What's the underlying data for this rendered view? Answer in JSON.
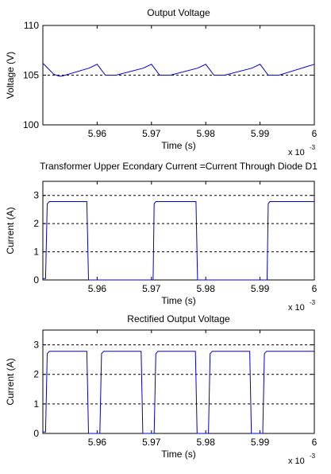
{
  "chart_data": [
    {
      "type": "line",
      "title": "Output Voltage",
      "xlabel": "Time (s)",
      "ylabel": "Voltage (V)",
      "xlim": [
        0.00595,
        0.006
      ],
      "ylim": [
        100,
        110
      ],
      "xticks": [
        0.00596,
        0.00597,
        0.00598,
        0.00599,
        0.006
      ],
      "xtick_labels": [
        "5.96",
        "5.97",
        "5.98",
        "5.99",
        "6"
      ],
      "yticks": [
        100,
        105,
        110
      ],
      "ytick_labels": [
        "100",
        "105",
        "110"
      ],
      "x_exponent": {
        "base": "x 10",
        "power": "-3"
      },
      "grid": "dotted-horizontal",
      "reference_line": 105,
      "series": [
        {
          "color": "#0000cc",
          "x": [
            0.00595,
            0.005952,
            0.005953,
            0.0059535,
            0.0059585,
            0.00596,
            0.0059615,
            0.0059635,
            0.0059685,
            0.00597,
            0.0059715,
            0.0059735,
            0.0059785,
            0.00598,
            0.0059815,
            0.0059835,
            0.0059885,
            0.00599,
            0.0059915,
            0.0059935,
            0.006
          ],
          "y": [
            106.2,
            105.1,
            104.9,
            104.9,
            105.7,
            106.1,
            105.0,
            105.0,
            105.7,
            106.1,
            105.0,
            105.0,
            105.7,
            106.1,
            105.0,
            105.0,
            105.7,
            106.1,
            105.0,
            105.0,
            106.1
          ]
        }
      ]
    },
    {
      "type": "line",
      "title": "Transformer Upper Econdary Current =Current Through Diode D1",
      "xlabel": "Time (s)",
      "ylabel": "Current (A)",
      "xlim": [
        0.00595,
        0.006
      ],
      "ylim": [
        0,
        3.5
      ],
      "xticks": [
        0.00596,
        0.00597,
        0.00598,
        0.00599,
        0.006
      ],
      "xtick_labels": [
        "5.96",
        "5.97",
        "5.98",
        "5.99",
        "6"
      ],
      "yticks": [
        0,
        1,
        2,
        3
      ],
      "ytick_labels": [
        "0",
        "1",
        "2",
        "3"
      ],
      "x_exponent": {
        "base": "x 10",
        "power": "-3"
      },
      "grid": "dotted-horizontal",
      "series": [
        {
          "color": "#0000cc",
          "x": [
            0.00595,
            0.0059505,
            0.0059508,
            0.0059512,
            0.0059581,
            0.0059584,
            0.0059703,
            0.0059705,
            0.0059708,
            0.0059782,
            0.0059785,
            0.0059913,
            0.0059915,
            0.0059918,
            0.006
          ],
          "y": [
            0.05,
            0.05,
            2.7,
            2.78,
            2.78,
            0,
            0,
            2.7,
            2.78,
            2.78,
            0,
            0,
            2.7,
            2.78,
            2.78
          ]
        }
      ]
    },
    {
      "type": "line",
      "title": "Rectified Output Voltage",
      "xlabel": "Time (s)",
      "ylabel": "Current (A)",
      "xlim": [
        0.00595,
        0.006
      ],
      "ylim": [
        0,
        3.5
      ],
      "xticks": [
        0.00596,
        0.00597,
        0.00598,
        0.00599,
        0.006
      ],
      "xtick_labels": [
        "5.96",
        "5.97",
        "5.98",
        "5.99",
        "6"
      ],
      "yticks": [
        0,
        1,
        2,
        3
      ],
      "ytick_labels": [
        "0",
        "1",
        "2",
        "3"
      ],
      "x_exponent": {
        "base": "x 10",
        "power": "-3"
      },
      "grid": "dotted-horizontal",
      "series": [
        {
          "color": "#0000cc",
          "x": [
            0.00595,
            0.0059505,
            0.0059508,
            0.0059512,
            0.0059581,
            0.0059584,
            0.0059605,
            0.0059608,
            0.0059612,
            0.0059681,
            0.0059684,
            0.0059705,
            0.0059708,
            0.0059712,
            0.0059781,
            0.0059784,
            0.0059805,
            0.0059808,
            0.0059812,
            0.0059881,
            0.0059884,
            0.0059905,
            0.0059908,
            0.0059912,
            0.006
          ],
          "y": [
            0.05,
            0.05,
            2.7,
            2.78,
            2.78,
            0,
            0,
            2.7,
            2.78,
            2.78,
            0,
            0,
            2.7,
            2.78,
            2.78,
            0,
            0,
            2.7,
            2.78,
            2.78,
            0,
            0,
            2.7,
            2.78,
            2.78
          ]
        }
      ]
    }
  ]
}
